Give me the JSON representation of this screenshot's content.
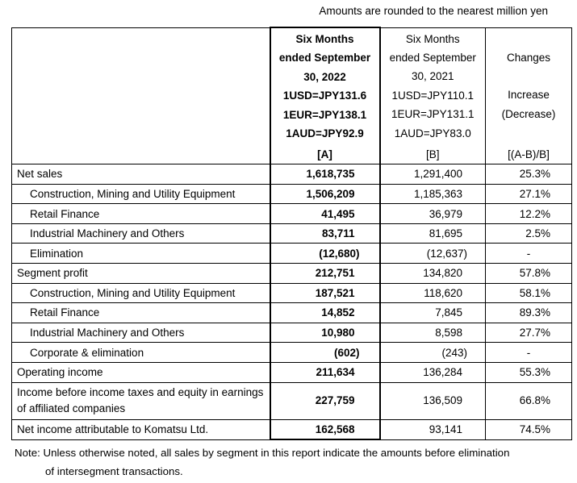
{
  "unit_note": "Amounts are rounded to the nearest million yen",
  "header": {
    "a": [
      "Six Months",
      "ended September",
      "30, 2022",
      "1USD=JPY131.6",
      "1EUR=JPY138.1",
      "1AUD=JPY92.9"
    ],
    "b": [
      "Six Months",
      "ended September",
      "30, 2021",
      "1USD=JPY110.1",
      "1EUR=JPY131.1",
      "1AUD=JPY83.0"
    ],
    "c": [
      "Changes",
      "",
      "Increase",
      "(Decrease)"
    ],
    "a_tag": "[A]",
    "b_tag": "[B]",
    "c_tag": "[(A-B)/B]"
  },
  "rows": [
    {
      "label": "Net sales",
      "a": "1,618,735",
      "b": "1,291,400",
      "c": "25.3%"
    },
    {
      "label": "Construction, Mining and Utility Equipment",
      "a": "1,506,209",
      "b": "1,185,363",
      "c": "27.1%"
    },
    {
      "label": "Retail Finance",
      "a": "41,495",
      "b": "36,979",
      "c": "12.2%"
    },
    {
      "label": "Industrial Machinery and Others",
      "a": "83,711",
      "b": "81,695",
      "c": "2.5%"
    },
    {
      "label": "Elimination",
      "a": "(12,680)",
      "b": "(12,637)",
      "c": "-"
    },
    {
      "label": "Segment profit",
      "a": "212,751",
      "b": "134,820",
      "c": "57.8%"
    },
    {
      "label": "Construction, Mining and Utility Equipment",
      "a": "187,521",
      "b": "118,620",
      "c": "58.1%"
    },
    {
      "label": "Retail Finance",
      "a": "14,852",
      "b": "7,845",
      "c": "89.3%"
    },
    {
      "label": "Industrial Machinery and Others",
      "a": "10,980",
      "b": "8,598",
      "c": "27.7%"
    },
    {
      "label": "Corporate & elimination",
      "a": "(602)",
      "b": "(243)",
      "c": "-"
    },
    {
      "label": "Operating income",
      "a": "211,634",
      "b": "136,284",
      "c": "55.3%"
    },
    {
      "label": "Income before income taxes and equity in earnings of affiliated companies",
      "a": "227,759",
      "b": "136,509",
      "c": "66.8%"
    },
    {
      "label": "Net income attributable  to Komatsu Ltd.",
      "a": "162,568",
      "b": "93,141",
      "c": "74.5%"
    }
  ],
  "note": {
    "line1": "Note: Unless otherwise noted, all sales by segment in this report indicate the amounts before elimination",
    "line2": "of intersegment transactions."
  }
}
